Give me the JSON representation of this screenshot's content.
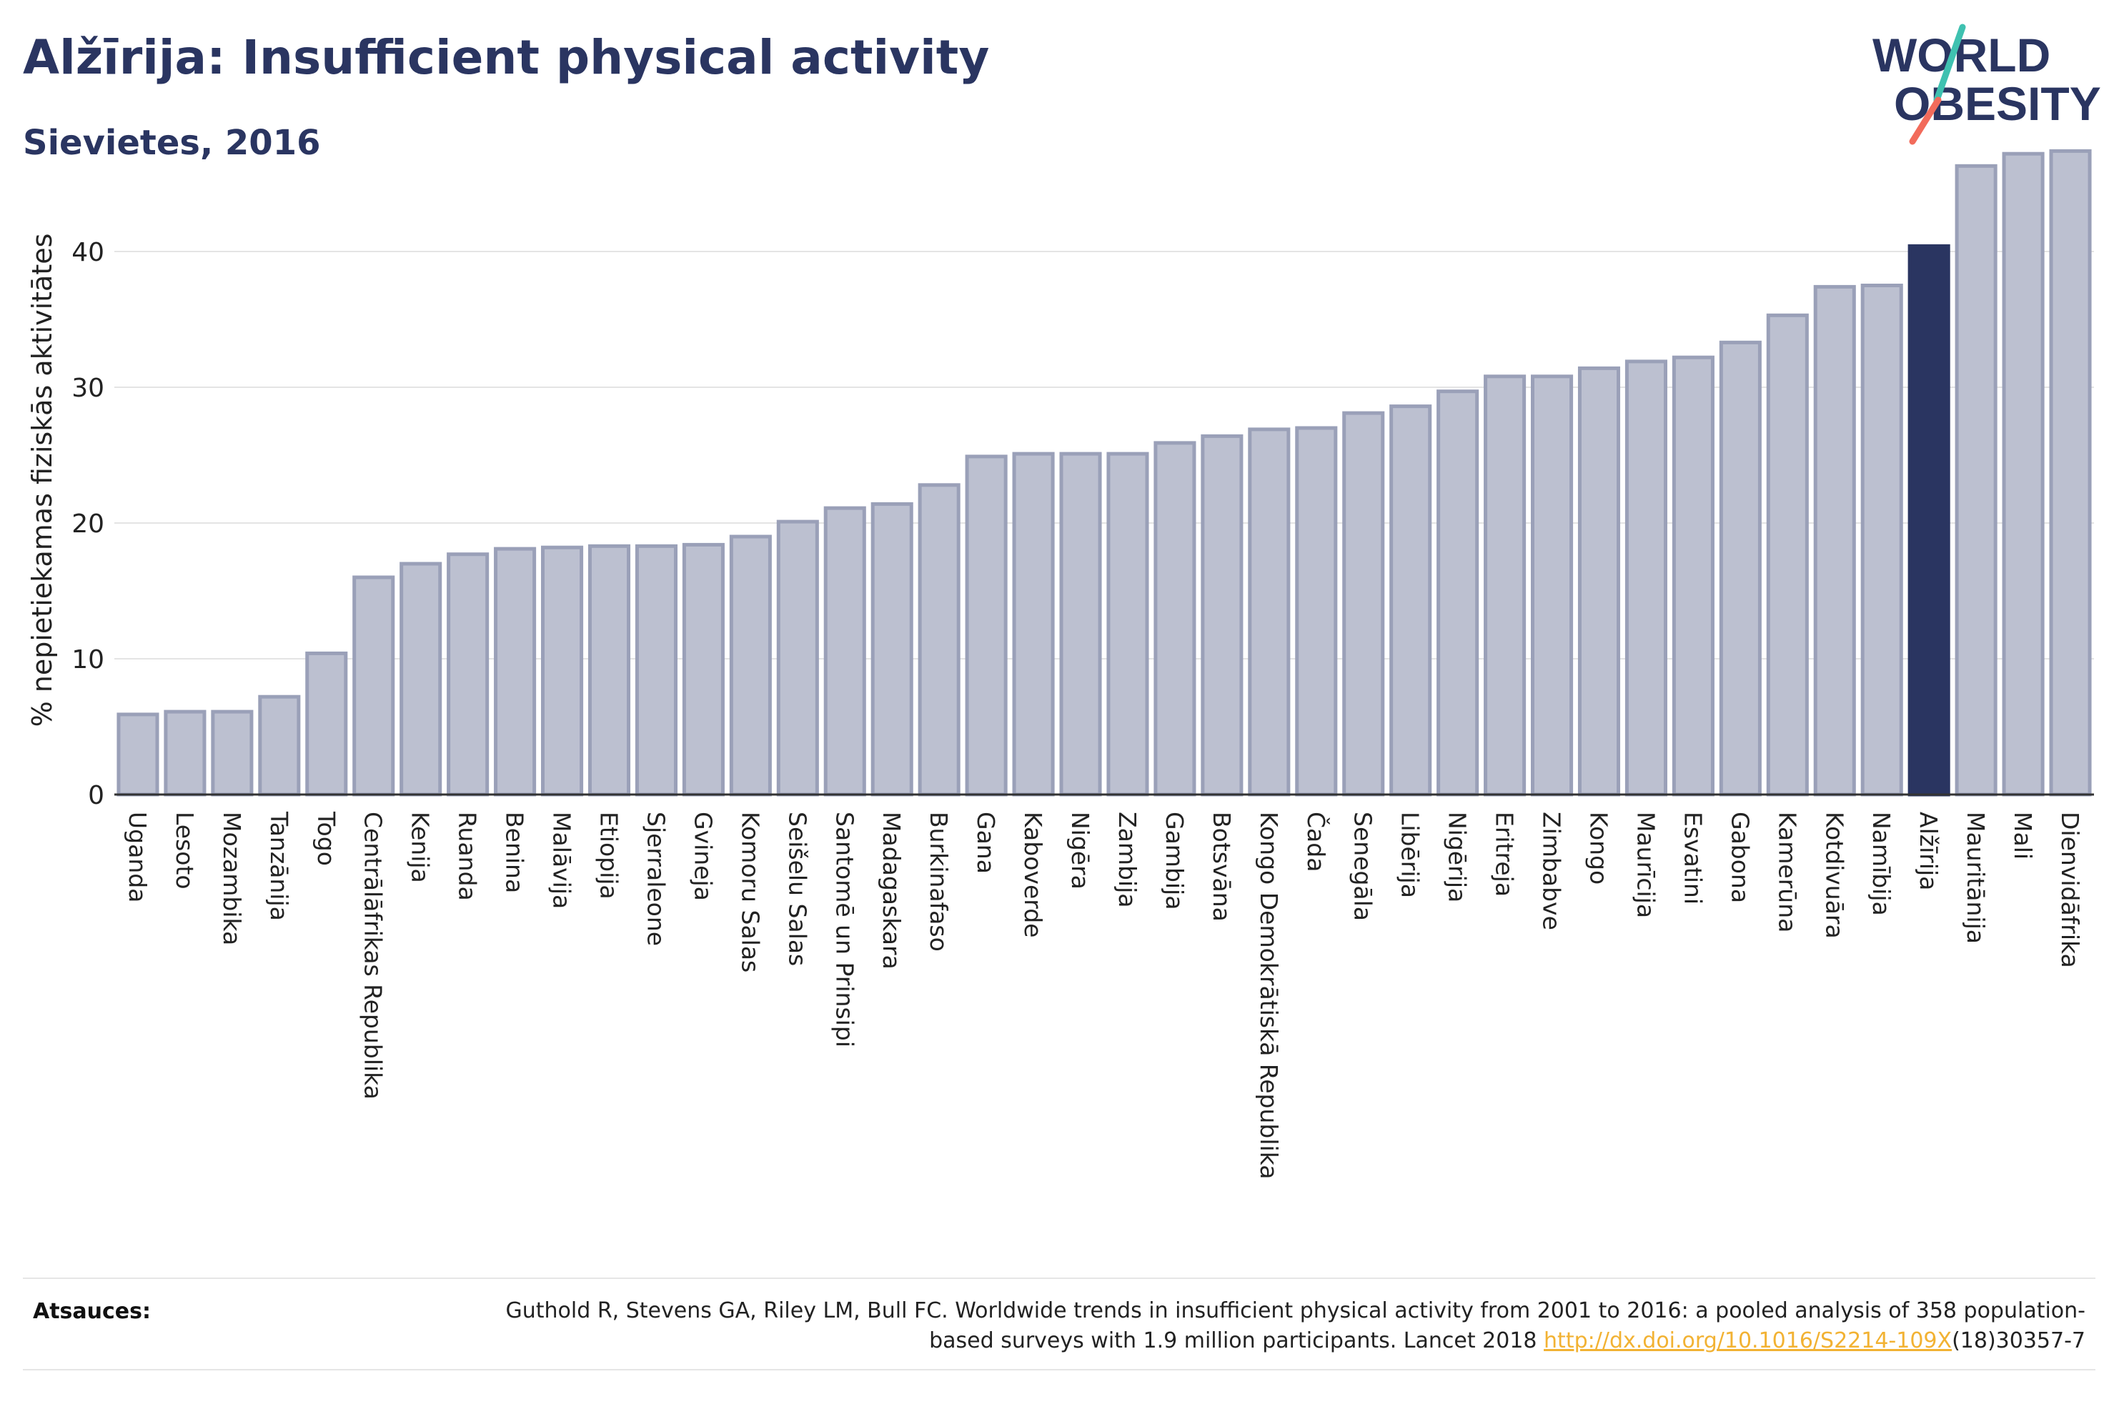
{
  "header": {
    "title": "Alžīrija: Insufficient physical activity",
    "subtitle": "Sievietes, 2016"
  },
  "logo": {
    "line1": "WORLD",
    "line2": "OBESITY",
    "brand_color": "#2a3561",
    "slash_colors": [
      "#3fc1b0",
      "#f26b5b"
    ]
  },
  "chart_data": {
    "type": "bar",
    "ylabel": "% nepietiekamas fiziskās aktivitātes",
    "xlabel": "",
    "ylim": [
      0,
      48
    ],
    "yticks": [
      0,
      10,
      20,
      30,
      40
    ],
    "grid": true,
    "highlight": "Alžīrija",
    "colors": {
      "bar": "#bcc0d0",
      "bar_border": "#9aa0b8",
      "highlight": "#2a3561"
    },
    "categories": [
      "Uganda",
      "Lesoto",
      "Mozambika",
      "Tanzānija",
      "Togo",
      "Centrālāfrikas Republika",
      "Kenija",
      "Ruanda",
      "Benina",
      "Malāvija",
      "Etiopija",
      "Sjerraleone",
      "Gvineja",
      "Komoru Salas",
      "Seišelu Salas",
      "Santomē un Prinsipi",
      "Madagaskara",
      "Burkinafaso",
      "Gana",
      "Kaboverde",
      "Nigēra",
      "Zambija",
      "Gambija",
      "Botsvāna",
      "Kongo Demokrātiskā Republika",
      "Čada",
      "Senegāla",
      "Libērija",
      "Nigērija",
      "Eritreja",
      "Zimbabve",
      "Kongo",
      "Maurīcija",
      "Esvatini",
      "Gabona",
      "Kamerūna",
      "Kotdivuāra",
      "Namībija",
      "Alžīrija",
      "Mauritānija",
      "Mali",
      "Dienvidāfrika"
    ],
    "values": [
      5.9,
      6.1,
      6.1,
      7.2,
      10.4,
      16.0,
      17.0,
      17.7,
      18.1,
      18.2,
      18.3,
      18.3,
      18.4,
      19.0,
      20.1,
      21.1,
      21.4,
      22.8,
      24.9,
      25.1,
      25.1,
      25.1,
      25.9,
      26.4,
      26.9,
      27.0,
      28.1,
      28.6,
      29.7,
      30.8,
      30.8,
      31.4,
      31.9,
      32.2,
      33.3,
      35.3,
      37.4,
      37.5,
      40.4,
      46.3,
      47.2,
      47.4
    ]
  },
  "sources": {
    "label": "Atsauces:",
    "text_before": "Guthold R, Stevens GA, Riley LM, Bull FC. Worldwide trends in insufficient physical activity from 2001 to 2016: a pooled analysis of 358 population-based surveys with 1.9 million participants. Lancet 2018 ",
    "link": "http://dx.doi.org/10.1016/S2214-109X",
    "text_after": "(18)30357-7"
  }
}
